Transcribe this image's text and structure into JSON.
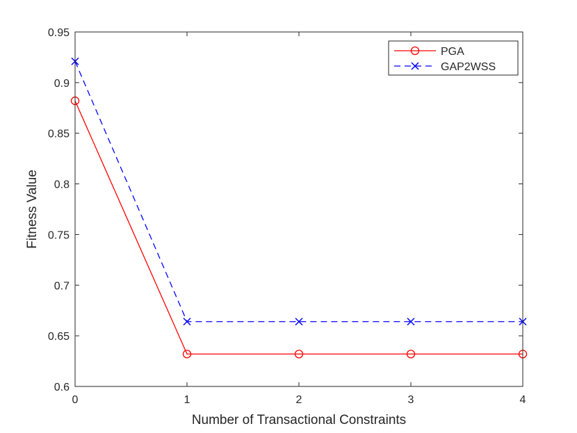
{
  "chart_data": {
    "type": "line",
    "title": "",
    "xlabel": "Number of Transactional Constraints",
    "ylabel": "Fitness Value",
    "x": [
      0,
      1,
      2,
      3,
      4
    ],
    "xticks": [
      "0",
      "1",
      "2",
      "3",
      "4"
    ],
    "yticks": [
      "0.6",
      "0.65",
      "0.7",
      "0.75",
      "0.8",
      "0.85",
      "0.9",
      "0.95"
    ],
    "xlim": [
      0,
      4
    ],
    "ylim": [
      0.6,
      0.95
    ],
    "grid": false,
    "legend_position": "top-right",
    "series": [
      {
        "name": "PGA",
        "values": [
          0.882,
          0.632,
          0.632,
          0.632,
          0.632
        ],
        "color": "#ff0000",
        "marker": "circle",
        "line": "solid"
      },
      {
        "name": "GAP2WSS",
        "values": [
          0.921,
          0.664,
          0.664,
          0.664,
          0.664
        ],
        "color": "#0000ff",
        "marker": "x",
        "line": "dashed"
      }
    ]
  }
}
